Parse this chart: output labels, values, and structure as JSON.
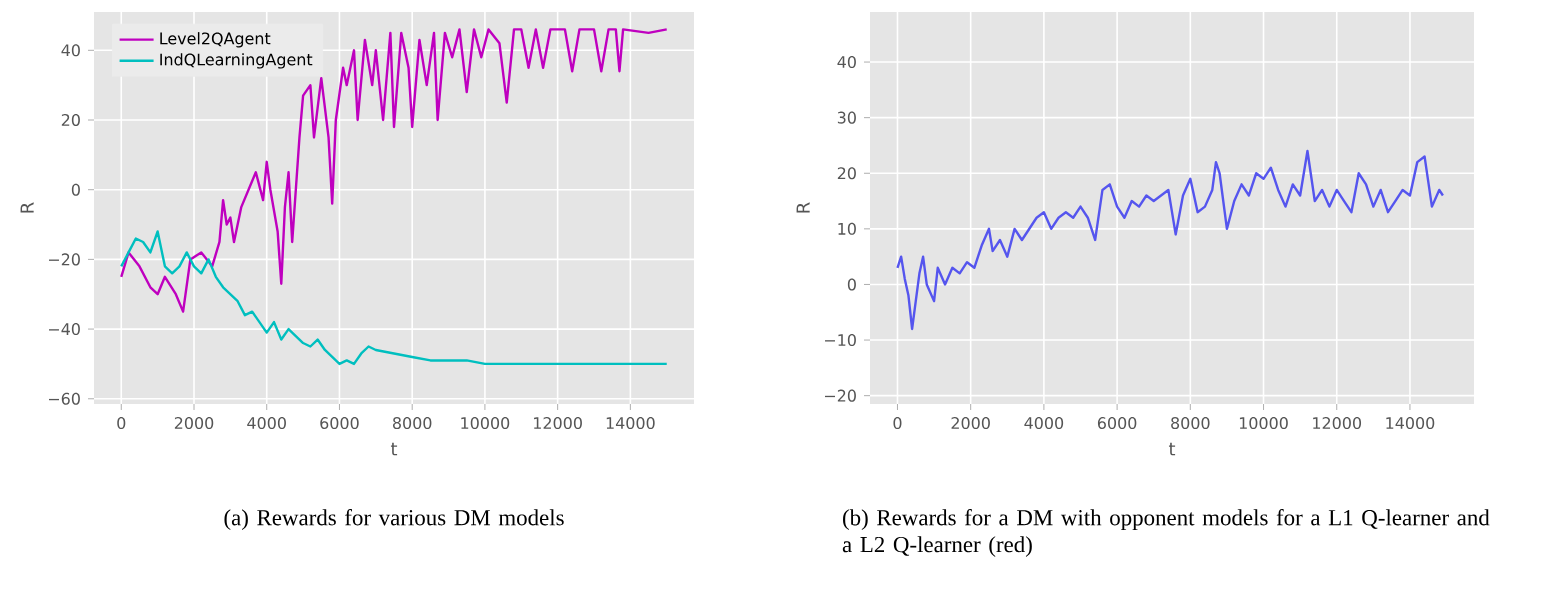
{
  "chart_data": [
    {
      "type": "line",
      "title": "(a) Rewards for various DM models",
      "xlabel": "t",
      "ylabel": "R",
      "grid": true,
      "legend": "top left",
      "xlim": [
        -750,
        15750
      ],
      "ylim": [
        -61.5,
        51
      ],
      "xticks": [
        0,
        2000,
        4000,
        6000,
        8000,
        10000,
        12000,
        14000
      ],
      "yticks": [
        {
          "value": -60,
          "label": "−60"
        },
        {
          "value": -40,
          "label": "−40"
        },
        {
          "value": -20,
          "label": "−20"
        },
        0,
        20,
        40
      ],
      "series": [
        {
          "name": "Level2QAgent",
          "color": "#bf00bf",
          "x": [
            0,
            200,
            500,
            800,
            1000,
            1200,
            1500,
            1700,
            1900,
            2200,
            2500,
            2700,
            2800,
            2900,
            3000,
            3100,
            3300,
            3500,
            3700,
            3900,
            4000,
            4100,
            4300,
            4400,
            4500,
            4600,
            4700,
            4900,
            5000,
            5200,
            5300,
            5500,
            5700,
            5800,
            5900,
            6100,
            6200,
            6400,
            6500,
            6700,
            6900,
            7000,
            7200,
            7400,
            7500,
            7700,
            7900,
            8000,
            8200,
            8400,
            8600,
            8700,
            8900,
            9100,
            9300,
            9500,
            9700,
            9900,
            10100,
            10400,
            10600,
            10800,
            11000,
            11200,
            11400,
            11600,
            11800,
            12200,
            12400,
            12600,
            13000,
            13200,
            13400,
            13600,
            13700,
            13800,
            14500,
            15000
          ],
          "values": [
            -25,
            -18,
            -22,
            -28,
            -30,
            -25,
            -30,
            -35,
            -20,
            -18,
            -22,
            -15,
            -3,
            -10,
            -8,
            -15,
            -5,
            0,
            5,
            -3,
            8,
            0,
            -12,
            -27,
            -5,
            5,
            -15,
            15,
            27,
            30,
            15,
            32,
            15,
            -4,
            20,
            35,
            30,
            40,
            20,
            43,
            30,
            40,
            20,
            45,
            18,
            45,
            35,
            18,
            43,
            30,
            45,
            20,
            45,
            38,
            46,
            28,
            46,
            38,
            46,
            42,
            25,
            46,
            46,
            35,
            46,
            35,
            46,
            46,
            34,
            46,
            46,
            34,
            46,
            46,
            34,
            46,
            45,
            46
          ]
        },
        {
          "name": "IndQLearningAgent",
          "color": "#00bfbf",
          "x": [
            0,
            200,
            400,
            600,
            800,
            1000,
            1200,
            1400,
            1600,
            1800,
            2000,
            2200,
            2400,
            2600,
            2800,
            3000,
            3200,
            3400,
            3600,
            3800,
            4000,
            4200,
            4400,
            4600,
            4800,
            5000,
            5200,
            5400,
            5600,
            5800,
            6000,
            6200,
            6400,
            6600,
            6800,
            7000,
            7500,
            8000,
            8500,
            9000,
            9500,
            10000,
            10500,
            11000,
            12000,
            13000,
            14000,
            15000
          ],
          "values": [
            -22,
            -18,
            -14,
            -15,
            -18,
            -12,
            -22,
            -24,
            -22,
            -18,
            -22,
            -24,
            -20,
            -25,
            -28,
            -30,
            -32,
            -36,
            -35,
            -38,
            -41,
            -38,
            -43,
            -40,
            -42,
            -44,
            -45,
            -43,
            -46,
            -48,
            -50,
            -49,
            -50,
            -47,
            -45,
            -46,
            -47,
            -48,
            -49,
            -49,
            -49,
            -50,
            -50,
            -50,
            -50,
            -50,
            -50,
            -50
          ]
        }
      ]
    },
    {
      "type": "line",
      "title": "(b) Rewards for a DM with opponent models for a L1 Q-learner and a L2 Q-learner (red)",
      "xlabel": "t",
      "ylabel": "R",
      "grid": true,
      "xlim": [
        -750,
        15750
      ],
      "ylim": [
        -21.5,
        49
      ],
      "xticks": [
        0,
        2000,
        4000,
        6000,
        8000,
        10000,
        12000,
        14000
      ],
      "yticks": [
        {
          "value": -20,
          "label": "−20"
        },
        {
          "value": -10,
          "label": "−10"
        },
        0,
        10,
        20,
        30,
        40
      ],
      "series": [
        {
          "color": "#5555ee",
          "x": [
            0,
            100,
            200,
            300,
            400,
            500,
            600,
            700,
            800,
            1000,
            1100,
            1300,
            1500,
            1700,
            1900,
            2100,
            2300,
            2500,
            2600,
            2800,
            3000,
            3200,
            3400,
            3600,
            3800,
            4000,
            4200,
            4400,
            4600,
            4800,
            5000,
            5200,
            5400,
            5600,
            5800,
            6000,
            6200,
            6400,
            6600,
            6800,
            7000,
            7200,
            7400,
            7600,
            7800,
            8000,
            8200,
            8400,
            8600,
            8700,
            8800,
            9000,
            9200,
            9400,
            9600,
            9800,
            10000,
            10200,
            10400,
            10600,
            10800,
            11000,
            11200,
            11400,
            11600,
            11800,
            12000,
            12200,
            12400,
            12600,
            12800,
            13000,
            13200,
            13400,
            13600,
            13800,
            14000,
            14200,
            14400,
            14600,
            14800,
            14900
          ],
          "values": [
            3,
            5,
            1,
            -2,
            -8,
            -3,
            2,
            5,
            0,
            -3,
            3,
            0,
            3,
            2,
            4,
            3,
            7,
            10,
            6,
            8,
            5,
            10,
            8,
            10,
            12,
            13,
            10,
            12,
            13,
            12,
            14,
            12,
            8,
            17,
            18,
            14,
            12,
            15,
            14,
            16,
            15,
            16,
            17,
            9,
            16,
            19,
            13,
            14,
            17,
            22,
            20,
            10,
            15,
            18,
            16,
            20,
            19,
            21,
            17,
            14,
            18,
            16,
            24,
            15,
            17,
            14,
            17,
            15,
            13,
            20,
            18,
            14,
            17,
            13,
            15,
            17,
            16,
            22,
            23,
            14,
            17,
            16
          ]
        }
      ]
    }
  ]
}
